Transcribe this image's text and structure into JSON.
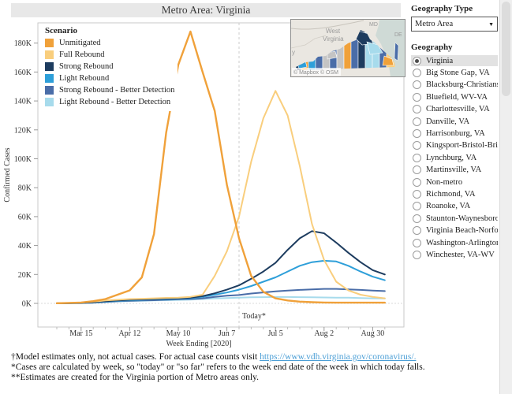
{
  "header": {
    "title": "Metro Area: Virginia"
  },
  "legend": {
    "title": "Scenario",
    "items": [
      {
        "label": "Unmitigated",
        "color": "#F0A13A"
      },
      {
        "label": "Full Rebound",
        "color": "#F9CE7D"
      },
      {
        "label": "Strong Rebound",
        "color": "#1D3C5F"
      },
      {
        "label": "Light Rebound",
        "color": "#2E9FD9"
      },
      {
        "label": "Strong Rebound - Better Detection",
        "color": "#4A6DA8"
      },
      {
        "label": "Light Rebound - Better Detection",
        "color": "#A7DBEC"
      }
    ]
  },
  "chart_data": {
    "type": "line",
    "title": "Metro Area: Virginia",
    "xlabel": "Week Ending [2020]",
    "ylabel": "Confirmed Cases",
    "x": [
      "Mar 1",
      "Mar 8",
      "Mar 15",
      "Mar 22",
      "Mar 29",
      "Apr 5",
      "Apr 12",
      "Apr 19",
      "Apr 26",
      "May 3",
      "May 10",
      "May 17",
      "May 24",
      "May 31",
      "Jun 7",
      "Jun 14",
      "Jun 21",
      "Jun 28",
      "Jul 5",
      "Jul 12",
      "Jul 19",
      "Jul 26",
      "Aug 2",
      "Aug 9",
      "Aug 16",
      "Aug 23",
      "Aug 30",
      "Sep 6"
    ],
    "x_tick_indices": [
      2,
      6,
      10,
      14,
      18,
      22,
      26
    ],
    "x_tick_labels": [
      "Mar 15",
      "Apr 12",
      "May 10",
      "Jun 7",
      "Jul 5",
      "Aug 2",
      "Aug 30"
    ],
    "y_ticks_thousands": [
      0,
      20,
      40,
      60,
      80,
      100,
      120,
      140,
      160,
      180
    ],
    "y_tick_suffix": "K",
    "ylim_thousands": [
      0,
      194
    ],
    "grid": "zero-line-only",
    "legend_position": "top-left-inside",
    "today_marker": {
      "index": 15,
      "label": "Today*"
    },
    "series": [
      {
        "name": "Unmitigated",
        "color": "#F0A13A",
        "values_thousands": [
          0.1,
          0.3,
          0.6,
          1.5,
          3,
          6,
          9,
          18,
          48,
          118,
          165,
          188,
          160,
          133,
          82,
          45,
          19,
          8,
          3.5,
          2,
          1.2,
          0.8,
          0.6,
          0.5,
          0.5,
          0.5,
          0.5,
          0.5
        ]
      },
      {
        "name": "Full Rebound",
        "color": "#F9CE7D",
        "values_thousands": [
          0.1,
          0.3,
          0.6,
          1.2,
          2,
          2.5,
          3,
          3.2,
          3.5,
          3.8,
          4,
          4.5,
          6,
          19,
          36,
          60,
          98,
          128,
          147,
          130,
          95,
          55,
          30,
          15,
          9,
          6,
          4.5,
          3.5
        ]
      },
      {
        "name": "Strong Rebound",
        "color": "#1D3C5F",
        "values_thousands": [
          0.05,
          0.1,
          0.3,
          0.8,
          1.5,
          2,
          2.5,
          2.8,
          3,
          3.3,
          3.6,
          4,
          5,
          7,
          9.5,
          12.5,
          17,
          22,
          28,
          37,
          45,
          50,
          48.5,
          42,
          35,
          28.5,
          23,
          20
        ]
      },
      {
        "name": "Light Rebound",
        "color": "#2E9FD9",
        "values_thousands": [
          0.05,
          0.1,
          0.25,
          0.7,
          1.2,
          1.8,
          2.2,
          2.5,
          2.8,
          3,
          3.3,
          3.6,
          4.5,
          6,
          7.5,
          9.5,
          12,
          15,
          18,
          22,
          26,
          28.5,
          29.5,
          29,
          26,
          22,
          18.5,
          16
        ]
      },
      {
        "name": "Strong Rebound - Better Detection",
        "color": "#4A6DA8",
        "values_thousands": [
          0.05,
          0.1,
          0.2,
          0.5,
          1,
          1.5,
          1.8,
          2,
          2.2,
          2.5,
          2.8,
          3,
          3.5,
          4.5,
          5.3,
          5.8,
          6.8,
          7.6,
          8.3,
          8.9,
          9.3,
          9.7,
          10,
          10,
          9.7,
          9.3,
          8.9,
          8.5
        ]
      },
      {
        "name": "Light Rebound - Better Detection",
        "color": "#A7DBEC",
        "values_thousands": [
          0.05,
          0.1,
          0.2,
          0.5,
          0.9,
          1.3,
          1.6,
          1.8,
          2,
          2.2,
          2.4,
          2.6,
          3,
          3.4,
          3.7,
          4,
          4.2,
          4.3,
          4.4,
          4.4,
          4.3,
          4.2,
          4.1,
          4,
          3.9,
          3.7,
          3.5,
          3.4
        ]
      }
    ]
  },
  "map": {
    "label_west_virginia_line1": "West",
    "label_west_virginia_line2": "Virginia",
    "label_md": "MD",
    "label_de": "DE",
    "label_edge": "y",
    "attribution": "© Mapbox © OSM"
  },
  "sidebar": {
    "geography_type_label": "Geography Type",
    "geography_type_value": "Metro Area",
    "geography_label": "Geography",
    "selected_geography": "Virginia",
    "options": [
      "Virginia",
      "Big Stone Gap, VA",
      "Blacksburg-Christiansbu...",
      "Bluefield, WV-VA",
      "Charlottesville, VA",
      "Danville, VA",
      "Harrisonburg, VA",
      "Kingsport-Bristol-Bristol...",
      "Lynchburg, VA",
      "Martinsville, VA",
      "Non-metro",
      "Richmond, VA",
      "Roanoke, VA",
      "Staunton-Waynesboro, VA",
      "Virginia Beach-Norfolk-...",
      "Washington-Arlington-A...",
      "Winchester, VA-WV"
    ]
  },
  "footnotes": {
    "line1_text": "†Model estimates only, not actual cases. For actual case counts visit ",
    "line1_link": "https://www.vdh.virginia.gov/coronavirus/.",
    "line2": "*Cases are calculated by week, so \"today\" or \"so far\" refers to the week end date of the week in which today falls.",
    "line3": "**Estimates are created for the Virginia portion of Metro areas only."
  }
}
